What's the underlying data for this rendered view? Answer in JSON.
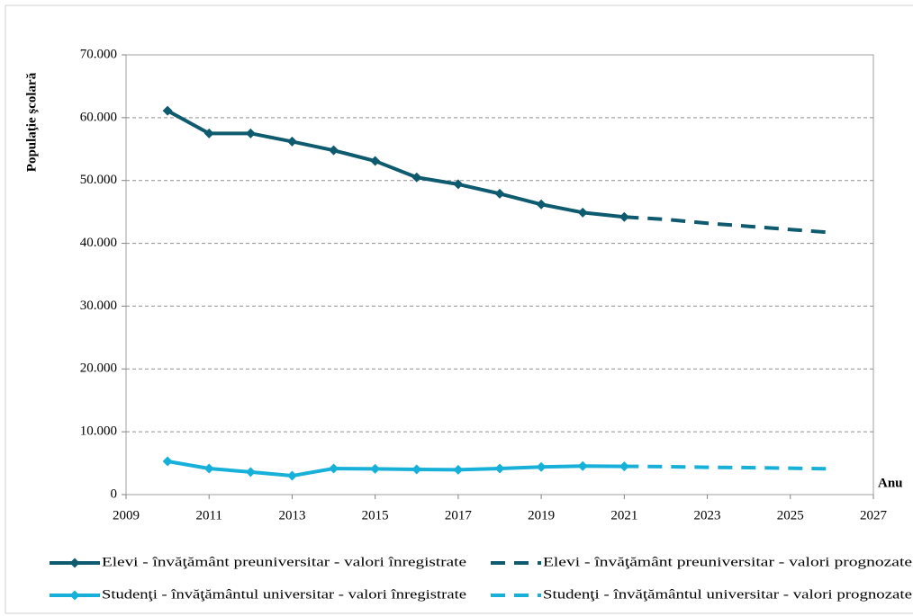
{
  "chart_data": {
    "type": "line",
    "y_label": "Populaţie şcolară",
    "x_label": "Anu",
    "x": [
      2010,
      2011,
      2012,
      2013,
      2014,
      2015,
      2016,
      2017,
      2018,
      2019,
      2020,
      2021,
      2022,
      2023,
      2024,
      2025,
      2026
    ],
    "series": [
      {
        "name": "Elevi - învăţământ preuniversitar - valori înregistrate",
        "color": "#0e5a6e",
        "dashed": false,
        "markers": true,
        "values": [
          61100,
          57500,
          57500,
          56200,
          54800,
          53100,
          50500,
          49400,
          47900,
          46200,
          44900,
          44200,
          null,
          null,
          null,
          null,
          null
        ]
      },
      {
        "name": "Elevi - învăţământ preuniversitar - valori prognozate",
        "color": "#0e5a6e",
        "dashed": true,
        "markers": false,
        "values": [
          null,
          null,
          null,
          null,
          null,
          null,
          null,
          null,
          null,
          null,
          null,
          44200,
          43800,
          43200,
          42700,
          42200,
          41700
        ]
      },
      {
        "name": "Studenţi - învăţământul universitar - valori înregistrate",
        "color": "#17b0d8",
        "dashed": false,
        "markers": true,
        "values": [
          5300,
          4150,
          3600,
          3000,
          4150,
          4100,
          4000,
          3950,
          4150,
          4400,
          4550,
          4500,
          null,
          null,
          null,
          null,
          null
        ]
      },
      {
        "name": "Studenţi - învăţământul universitar - valori prognozate",
        "color": "#17b0d8",
        "dashed": true,
        "markers": false,
        "values": [
          null,
          null,
          null,
          null,
          null,
          null,
          null,
          null,
          null,
          null,
          null,
          4500,
          4450,
          4350,
          4300,
          4200,
          4100
        ]
      }
    ],
    "xlim": [
      2009,
      2027
    ],
    "xticks": [
      2009,
      2011,
      2013,
      2015,
      2017,
      2019,
      2021,
      2023,
      2025,
      2027
    ],
    "ylim": [
      0,
      70000
    ],
    "yticks": [
      0,
      {
        "value": 10000,
        "label": "10.000"
      },
      {
        "value": 20000,
        "label": "20.000"
      },
      {
        "value": 30000,
        "label": "30.000"
      },
      {
        "value": 40000,
        "label": "40.000"
      },
      {
        "value": 50000,
        "label": "50.000"
      },
      {
        "value": 60000,
        "label": "60.000"
      },
      {
        "value": 70000,
        "label": "70.000"
      }
    ],
    "grid": true,
    "legend": "bottom"
  }
}
